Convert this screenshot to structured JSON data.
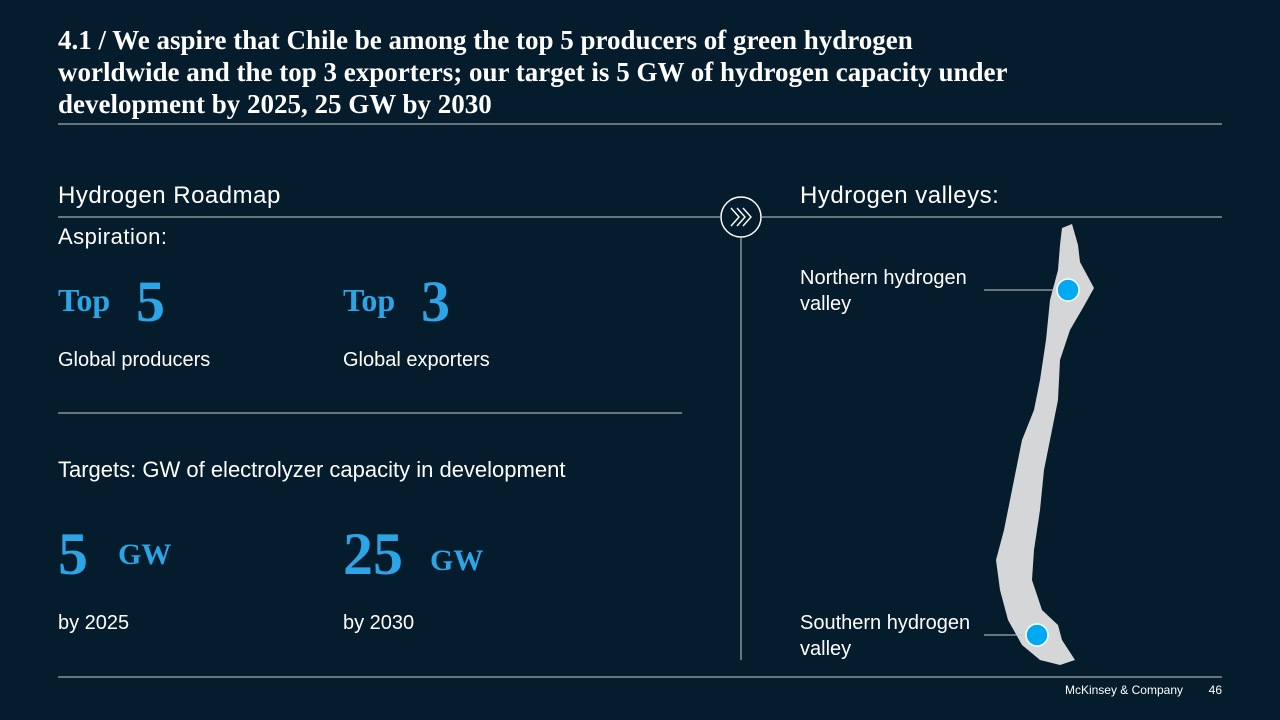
{
  "header": {
    "title_lines": [
      "4.1 / We aspire that Chile be among the top 5 producers of green hydrogen",
      "worldwide and the top 3 exporters; our target is 5 GW of hydrogen capacity under",
      "development by 2025, 25 GW by 2030"
    ]
  },
  "roadmap": {
    "heading": "Hydrogen Roadmap",
    "aspiration_label": "Aspiration:",
    "aspirations": [
      {
        "prefix": "Top",
        "rank": 5,
        "caption": "Global producers"
      },
      {
        "prefix": "Top",
        "rank": 3,
        "caption": "Global exporters"
      }
    ],
    "targets_label": "Targets: GW of electrolyzer capacity in development",
    "targets": [
      {
        "value": 5,
        "unit": "GW",
        "caption": "by 2025"
      },
      {
        "value": 25,
        "unit": "GW",
        "caption": "by 2030"
      }
    ]
  },
  "valleys": {
    "heading": "Hydrogen valleys:",
    "north": "Northern hydrogen valley",
    "south": "Southern hydrogen valley"
  },
  "footer": {
    "company": "McKinsey & Company",
    "page": 46
  }
}
